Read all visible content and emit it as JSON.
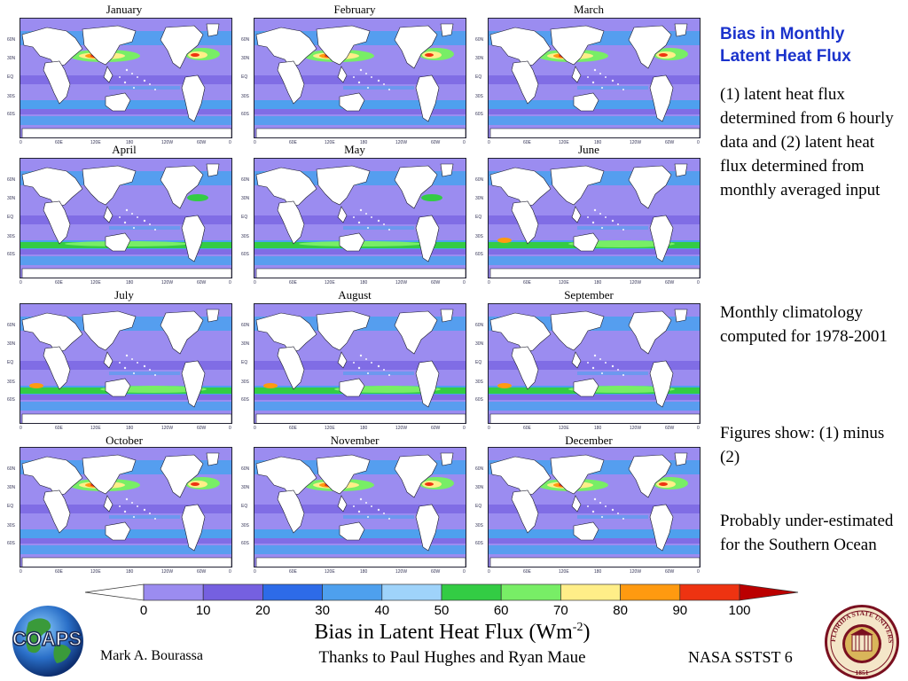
{
  "slide": {
    "title": "Bias in Monthly Latent Heat Flux",
    "paragraphs": [
      "(1) latent heat flux determined from 6 hourly data and (2) latent heat flux determined from monthly averaged input",
      "Monthly climatology computed for 1978-2001",
      "Figures show:  (1) minus (2)",
      "Probably under-estimated for the Southern Ocean"
    ],
    "figure_title_main": "Bias in Latent Heat Flux (Wm",
    "figure_title_sup": "-2",
    "figure_title_end": ")",
    "thanks": "Thanks to Paul Hughes and Ryan Maue",
    "author": "Mark A. Bourassa",
    "footer_right": "NASA SSTST  6",
    "logo_left_text": "COAPS",
    "logo_right_text": "FLORIDA STATE UNIVERSITY",
    "logo_right_year": "1851"
  },
  "maps": {
    "lat_labels": [
      "60N",
      "30N",
      "EQ",
      "30S",
      "60S"
    ],
    "lon_labels": [
      "0",
      "60E",
      "120E",
      "180",
      "120W",
      "60W",
      "0"
    ],
    "months": [
      "January",
      "February",
      "March",
      "April",
      "May",
      "June",
      "July",
      "August",
      "September",
      "October",
      "November",
      "December"
    ]
  },
  "colorbar": {
    "ticks": [
      "0",
      "10",
      "20",
      "30",
      "40",
      "50",
      "60",
      "70",
      "80",
      "90",
      "100"
    ],
    "colors": [
      "#ffffff",
      "#9b8cf0",
      "#7560e0",
      "#2d6be8",
      "#4ea0ee",
      "#9fd3fa",
      "#33cc44",
      "#78ee66",
      "#ffee88",
      "#ff9a10",
      "#ee3311",
      "#bb0000"
    ]
  }
}
